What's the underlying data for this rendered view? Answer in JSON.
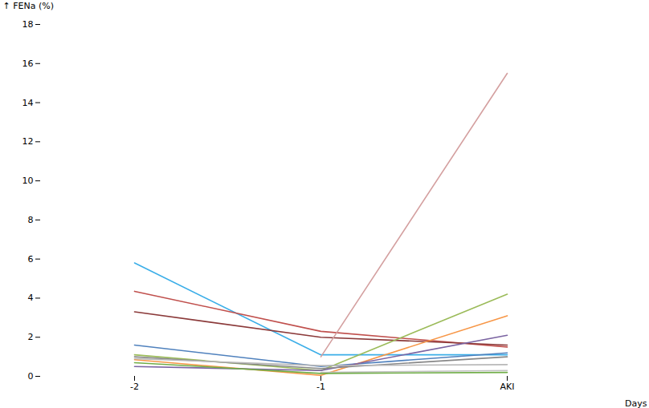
{
  "chart_data": {
    "type": "line",
    "xlabel": "Days",
    "ylabel": "FENa (%)",
    "categories": [
      "-2",
      "-1",
      "AKI"
    ],
    "ylim": [
      0,
      18
    ],
    "yticks": [
      0,
      2,
      4,
      6,
      8,
      10,
      12,
      14,
      16,
      18
    ],
    "grid": false,
    "series": [
      {
        "color": "#3BAEE8",
        "values": [
          5.8,
          1.1,
          1.1
        ]
      },
      {
        "color": "#C0504D",
        "values": [
          4.35,
          2.3,
          1.5
        ]
      },
      {
        "color": "#8B3A3A",
        "values": [
          3.3,
          2.0,
          1.6
        ]
      },
      {
        "color": "#D4A0A0",
        "values": [
          null,
          1.0,
          15.5
        ]
      },
      {
        "color": "#4F81BD",
        "values": [
          1.6,
          0.5,
          1.2
        ]
      },
      {
        "color": "#9BBB59",
        "values": [
          1.1,
          0.3,
          4.2
        ]
      },
      {
        "color": "#F79646",
        "values": [
          0.85,
          0.05,
          3.1
        ]
      },
      {
        "color": "#7B64A2",
        "values": [
          0.5,
          0.3,
          2.1
        ]
      },
      {
        "color": "#888888",
        "values": [
          1.0,
          0.4,
          1.0
        ]
      },
      {
        "color": "#B8B8B8",
        "values": [
          0.9,
          0.55,
          0.6
        ]
      },
      {
        "color": "#C0C0C0",
        "values": [
          null,
          0.2,
          0.3
        ]
      },
      {
        "color": "#70AD47",
        "values": [
          0.7,
          0.15,
          0.2
        ]
      }
    ]
  }
}
